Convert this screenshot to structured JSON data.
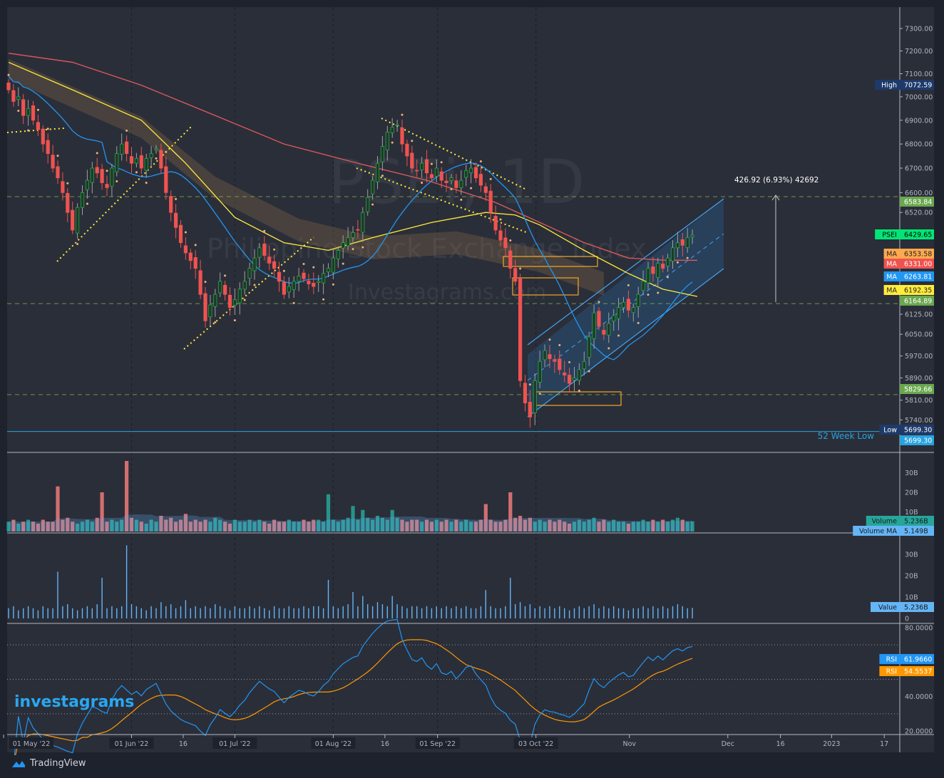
{
  "watermark": {
    "symbol": "PSEi, 1D",
    "name": "Philippine Stock Exchange Index",
    "site": "Investagrams.com"
  },
  "brand": {
    "logo_text": "investagrams",
    "footer": "TradingView"
  },
  "measure_label": "426.92 (6.93%) 42692",
  "week52_low_label": "52 Week Low",
  "colors": {
    "bg": "#2a2e39",
    "up": "#26a641",
    "down": "#ef5350",
    "ma20": "#2196f3",
    "ma50": "#ffeb3b",
    "ma100": "#e05a5a",
    "rsi": "#2196f3",
    "rsi_ma": "#ff9800",
    "volume_up": "#26a69a",
    "volume_down": "#ef7a7a"
  },
  "price_axis": {
    "ticks": [
      "7300.00",
      "7200.00",
      "7100.00",
      "7000.00",
      "6900.00",
      "6800.00",
      "6700.00",
      "6600.00",
      "6520.00",
      "6125.00",
      "6050.00",
      "5970.00",
      "5890.00",
      "5810.00",
      "5740.00"
    ],
    "tick_values": [
      7300,
      7200,
      7100,
      7000,
      6900,
      6800,
      6700,
      6600,
      6520,
      6125,
      6050,
      5970,
      5890,
      5810,
      5740
    ]
  },
  "tags": [
    {
      "label": "High",
      "value": "7072.59",
      "price": 7072.59,
      "bg": "#1e3a6a",
      "fg": "#ffffff"
    },
    {
      "label": "",
      "value": "6583.84",
      "price": 6583.84,
      "bg": "#6aa84f",
      "fg": "#ffffff"
    },
    {
      "label": "PSEI",
      "value": "6429.65",
      "price": 6429.65,
      "bg": "#00e676",
      "fg": "#000000"
    },
    {
      "label": "MA",
      "value": "6353.58",
      "price": 6353.58,
      "bg": "#ffa94d",
      "fg": "#222222"
    },
    {
      "label": "MA",
      "value": "6331.00",
      "price": 6331.0,
      "bg": "#ef5350",
      "fg": "#ffffff"
    },
    {
      "label": "MA",
      "value": "6263.81",
      "price": 6263.81,
      "bg": "#2196f3",
      "fg": "#ffffff"
    },
    {
      "label": "MA",
      "value": "6192.35",
      "price": 6192.35,
      "bg": "#ffeb3b",
      "fg": "#222222"
    },
    {
      "label": "",
      "value": "6164.89",
      "price": 6164.89,
      "bg": "#6aa84f",
      "fg": "#ffffff"
    },
    {
      "label": "",
      "value": "5829.66",
      "price": 5829.66,
      "bg": "#6aa84f",
      "fg": "#ffffff"
    },
    {
      "label": "Low",
      "value": "5699.30",
      "price": 5699.3,
      "bg": "#1e3a6a",
      "fg": "#ffffff"
    },
    {
      "label": "",
      "value": "5699.30",
      "price": 5650,
      "bg": "#29a3e0",
      "fg": "#ffffff"
    }
  ],
  "volume_axis": {
    "ticks": [
      "30B",
      "20B",
      "10B"
    ],
    "tick_values": [
      30,
      20,
      10
    ]
  },
  "volume_tags": [
    {
      "label": "Volume",
      "value": "5.236B",
      "bg": "#26a69a"
    },
    {
      "label": "Volume MA",
      "value": "5.149B",
      "bg": "#64b5f6"
    }
  ],
  "value_axis": {
    "ticks": [
      "30B",
      "20B",
      "10B",
      "0"
    ],
    "tick_values": [
      30,
      20,
      10,
      0
    ]
  },
  "value_tag": {
    "label": "Value",
    "value": "5.236B"
  },
  "rsi_axis": {
    "ticks": [
      "80.0000",
      "40.0000",
      "20.0000"
    ],
    "tick_values": [
      80,
      40,
      20
    ],
    "levels": [
      70,
      50,
      30
    ]
  },
  "rsi_tags": [
    {
      "label": "RSI",
      "value": "61.9660",
      "bg": "#2196f3"
    },
    {
      "label": "RSI",
      "value": "54.5537",
      "bg": "#ff9800"
    }
  ],
  "time_axis": [
    {
      "label": "01 May '22",
      "i": -1
    },
    {
      "label": "01 Jun '22",
      "i": 25
    },
    {
      "label": "16",
      "i": 35.5
    },
    {
      "label": "01 Jul '22",
      "i": 46
    },
    {
      "label": "01 Aug '22",
      "i": 66
    },
    {
      "label": "16",
      "i": 76.5
    },
    {
      "label": "01 Sep '22",
      "i": 87.2
    },
    {
      "label": "03 Oct '22",
      "i": 107.2
    },
    {
      "label": "Nov",
      "i": 126.2
    },
    {
      "label": "Dec",
      "i": 146.2
    },
    {
      "label": "16",
      "i": 156.9
    },
    {
      "label": "2023",
      "i": 167.3
    },
    {
      "label": "17",
      "i": 178
    }
  ],
  "chart_data": {
    "type": "candlestick",
    "title": "PSEi, 1D",
    "ylim": [
      5650,
      7350
    ],
    "close": [
      7030,
      6980,
      7000,
      6920,
      6950,
      6900,
      6860,
      6800,
      6760,
      6700,
      6660,
      6600,
      6520,
      6450,
      6540,
      6600,
      6650,
      6700,
      6680,
      6640,
      6620,
      6700,
      6760,
      6800,
      6760,
      6720,
      6740,
      6700,
      6740,
      6760,
      6780,
      6700,
      6600,
      6520,
      6460,
      6400,
      6360,
      6330,
      6300,
      6200,
      6100,
      6160,
      6200,
      6250,
      6200,
      6150,
      6180,
      6220,
      6250,
      6300,
      6340,
      6380,
      6350,
      6320,
      6300,
      6250,
      6200,
      6230,
      6250,
      6270,
      6260,
      6240,
      6230,
      6250,
      6280,
      6300,
      6340,
      6370,
      6400,
      6420,
      6440,
      6450,
      6520,
      6580,
      6650,
      6720,
      6790,
      6850,
      6870,
      6880,
      6800,
      6750,
      6700,
      6690,
      6720,
      6680,
      6660,
      6700,
      6650,
      6640,
      6660,
      6620,
      6650,
      6690,
      6700,
      6660,
      6630,
      6600,
      6520,
      6450,
      6410,
      6380,
      6300,
      6250,
      5880,
      5800,
      5750,
      5880,
      5950,
      5990,
      5960,
      5950,
      5920,
      5900,
      5870,
      5890,
      5920,
      5950,
      6040,
      6130,
      6080,
      6050,
      6090,
      6120,
      6150,
      6170,
      6140,
      6150,
      6200,
      6250,
      6300,
      6280,
      6320,
      6300,
      6340,
      6380,
      6400,
      6390,
      6420,
      6430
    ],
    "volume_b": [
      5,
      6,
      4,
      5,
      6,
      5,
      4,
      6,
      5,
      5,
      23,
      6,
      7,
      5,
      4,
      5,
      6,
      5,
      7,
      20,
      5,
      6,
      5,
      6,
      36,
      7,
      6,
      5,
      4,
      6,
      5,
      8,
      6,
      7,
      5,
      6,
      9,
      5,
      6,
      5,
      6,
      5,
      7,
      6,
      5,
      4,
      6,
      5,
      5,
      6,
      5,
      6,
      5,
      4,
      6,
      5,
      5,
      6,
      5,
      5,
      6,
      5,
      6,
      6,
      5,
      19,
      6,
      5,
      6,
      7,
      13,
      6,
      11,
      7,
      6,
      8,
      7,
      6,
      11,
      7,
      6,
      5,
      6,
      6,
      5,
      6,
      5,
      6,
      5,
      6,
      5,
      6,
      5,
      6,
      5,
      5,
      6,
      14,
      6,
      5,
      5,
      6,
      20,
      7,
      8,
      6,
      7,
      5,
      6,
      5,
      6,
      5,
      6,
      5,
      4,
      5,
      6,
      5,
      6,
      7,
      5,
      6,
      5,
      6,
      5,
      5,
      4,
      5,
      5,
      6,
      5,
      6,
      5,
      6,
      5,
      6,
      7,
      6,
      5,
      5.2
    ],
    "ma50_points": [
      [
        0,
        7150
      ],
      [
        13,
        7030
      ],
      [
        27,
        6900
      ],
      [
        36,
        6720
      ],
      [
        46,
        6500
      ],
      [
        56,
        6400
      ],
      [
        65,
        6370
      ],
      [
        74,
        6420
      ],
      [
        86,
        6480
      ],
      [
        97,
        6520
      ],
      [
        103,
        6510
      ],
      [
        108,
        6470
      ],
      [
        117,
        6370
      ],
      [
        126,
        6280
      ],
      [
        133,
        6220
      ],
      [
        140,
        6192
      ]
    ],
    "ma100_points": [
      [
        0,
        7190
      ],
      [
        13,
        7150
      ],
      [
        27,
        7050
      ],
      [
        42,
        6920
      ],
      [
        56,
        6800
      ],
      [
        71,
        6720
      ],
      [
        85,
        6650
      ],
      [
        99,
        6560
      ],
      [
        108,
        6480
      ],
      [
        117,
        6400
      ],
      [
        126,
        6340
      ],
      [
        133,
        6332
      ],
      [
        140,
        6331
      ]
    ],
    "band_points": [
      [
        0,
        7120
      ],
      [
        27,
        6870
      ],
      [
        42,
        6620
      ],
      [
        59,
        6450
      ],
      [
        74,
        6380
      ],
      [
        91,
        6400
      ],
      [
        108,
        6330
      ],
      [
        121,
        6240
      ]
    ]
  }
}
